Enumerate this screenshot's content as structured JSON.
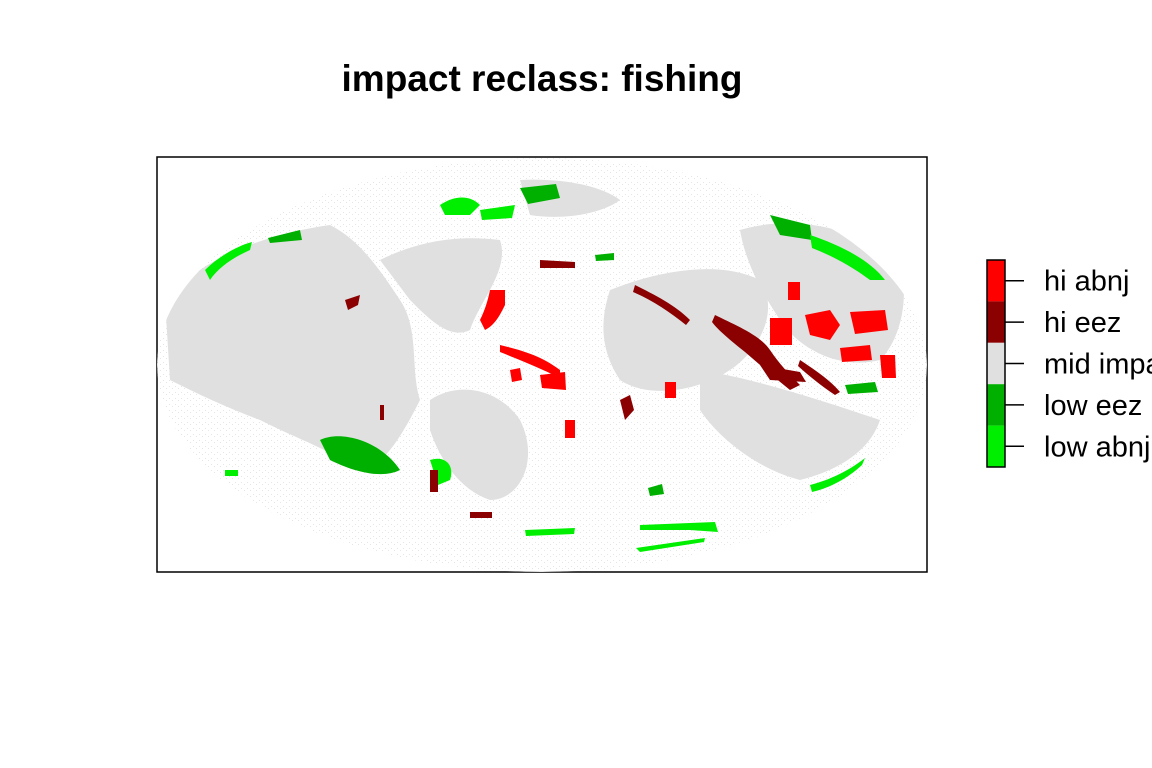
{
  "title": "impact reclass: fishing",
  "legend": {
    "items": [
      {
        "label": "hi abnj",
        "color": "#ff0000"
      },
      {
        "label": "hi eez",
        "color": "#8b0000"
      },
      {
        "label": "mid impact",
        "color": "#e0e0e0"
      },
      {
        "label": "low eez",
        "color": "#00b000"
      },
      {
        "label": "low abnj",
        "color": "#00ee00"
      }
    ]
  },
  "map": {
    "projection": "equal-area (elliptical)",
    "categories": [
      "hi abnj",
      "hi eez",
      "mid impact",
      "low eez",
      "low abnj"
    ]
  }
}
